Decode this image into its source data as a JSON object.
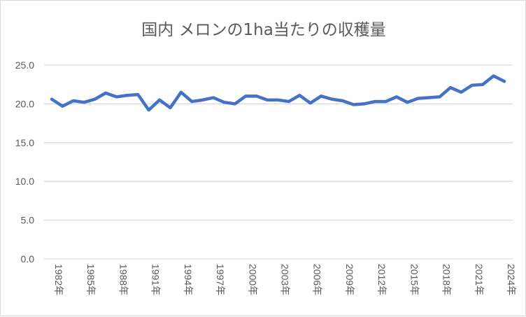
{
  "chart_data": {
    "type": "line",
    "title": "国内 メロンの1ha当たりの収穫量",
    "xlabel": "",
    "ylabel": "",
    "ylim": [
      0,
      25
    ],
    "yticks": [
      "0.0",
      "5.0",
      "10.0",
      "15.0",
      "20.0",
      "25.0"
    ],
    "grid": true,
    "line_color": "#4472C4",
    "x": [
      1982,
      1983,
      1984,
      1985,
      1986,
      1987,
      1988,
      1989,
      1990,
      1991,
      1992,
      1993,
      1994,
      1995,
      1996,
      1997,
      1998,
      1999,
      2000,
      2001,
      2002,
      2003,
      2004,
      2005,
      2006,
      2007,
      2008,
      2009,
      2010,
      2011,
      2012,
      2013,
      2014,
      2015,
      2016,
      2017,
      2018,
      2019,
      2020,
      2021,
      2022,
      2023,
      2024
    ],
    "xtick_labels": [
      "1982年",
      "1985年",
      "1988年",
      "1991年",
      "1994年",
      "1997年",
      "2000年",
      "2003年",
      "2006年",
      "2009年",
      "2012年",
      "2015年",
      "2018年",
      "2021年",
      "2024年"
    ],
    "values": [
      20.6,
      19.7,
      20.4,
      20.2,
      20.6,
      21.4,
      20.9,
      21.1,
      21.2,
      19.2,
      20.5,
      19.5,
      21.5,
      20.3,
      20.5,
      20.8,
      20.2,
      20.0,
      21.0,
      21.0,
      20.5,
      20.5,
      20.3,
      21.1,
      20.1,
      21.0,
      20.6,
      20.4,
      19.9,
      20.0,
      20.3,
      20.3,
      20.9,
      20.2,
      20.7,
      20.8,
      20.9,
      22.1,
      21.5,
      22.4,
      22.5,
      23.6,
      22.9
    ]
  }
}
